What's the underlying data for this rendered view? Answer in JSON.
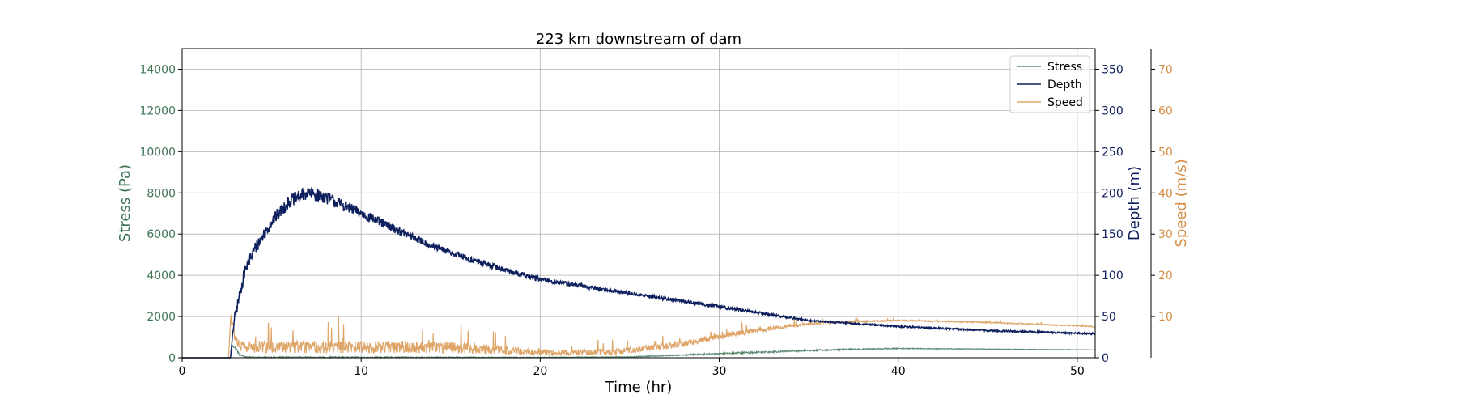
{
  "chart_data": {
    "type": "line",
    "title": "223 km downstream of dam",
    "xlabel": "Time (hr)",
    "xlim": [
      0,
      51
    ],
    "xticks": [
      0,
      10,
      20,
      30,
      40,
      50
    ],
    "grid": true,
    "legend_position": "top-right",
    "axes": {
      "left": {
        "label": "Stress (Pa)",
        "color": "#3f7455",
        "ylim": [
          0,
          15000
        ],
        "ticks": [
          0,
          2000,
          4000,
          6000,
          8000,
          10000,
          12000,
          14000
        ]
      },
      "right1": {
        "label": "Depth (m)",
        "color": "#0d1f5c",
        "ylim": [
          0,
          375
        ],
        "ticks": [
          0,
          50,
          100,
          150,
          200,
          250,
          300,
          350
        ]
      },
      "right2": {
        "label": "Speed (m/s)",
        "color": "#d68d45",
        "ylim": [
          0,
          75
        ],
        "ticks": [
          10,
          20,
          30,
          40,
          50,
          60,
          70
        ]
      }
    },
    "series": [
      {
        "name": "Stress",
        "axis": "left",
        "color": "#5e8c72",
        "x": [
          0,
          2.7,
          2.8,
          3.0,
          3.2,
          3.6,
          4,
          6,
          10,
          20,
          25,
          30,
          35,
          38,
          40,
          45,
          51
        ],
        "y": [
          0,
          0,
          600,
          450,
          150,
          30,
          20,
          20,
          20,
          20,
          40,
          200,
          350,
          420,
          450,
          420,
          380
        ],
        "noise": [
          0,
          0,
          60,
          60,
          40,
          30,
          30,
          30,
          30,
          10,
          20,
          40,
          40,
          30,
          20,
          15,
          10
        ]
      },
      {
        "name": "Depth",
        "axis": "right1",
        "color": "#0d1f5c",
        "x": [
          0,
          2.7,
          2.9,
          3.5,
          4,
          5,
          6,
          7,
          8,
          9,
          10,
          12,
          14,
          16,
          18,
          20,
          25,
          30,
          35,
          40,
          45,
          51
        ],
        "y": [
          0,
          0,
          45,
          105,
          130,
          165,
          190,
          200,
          195,
          185,
          175,
          155,
          135,
          120,
          107,
          95,
          78,
          62,
          45,
          38,
          33,
          29
        ],
        "noise": [
          0,
          0,
          6,
          8,
          8,
          8,
          8,
          8,
          8,
          7,
          6,
          5,
          4,
          4,
          3,
          3,
          2,
          2,
          1,
          1,
          1,
          1
        ]
      },
      {
        "name": "Speed",
        "axis": "right2",
        "color": "#dfa66a",
        "x": [
          0,
          2.6,
          2.7,
          3.0,
          3.3,
          4,
          6,
          10,
          15,
          20,
          24,
          28,
          30,
          33,
          36,
          40,
          45,
          51
        ],
        "y": [
          0,
          0,
          9,
          4,
          2,
          2,
          2,
          2,
          2,
          1,
          1,
          3,
          5,
          7,
          8.5,
          9,
          8.5,
          7.5
        ],
        "noise": [
          0,
          0,
          3,
          3,
          3,
          3,
          3,
          3,
          3,
          1.5,
          1.5,
          1.5,
          1.5,
          1,
          0.5,
          0.3,
          0.3,
          0.3
        ]
      }
    ]
  }
}
